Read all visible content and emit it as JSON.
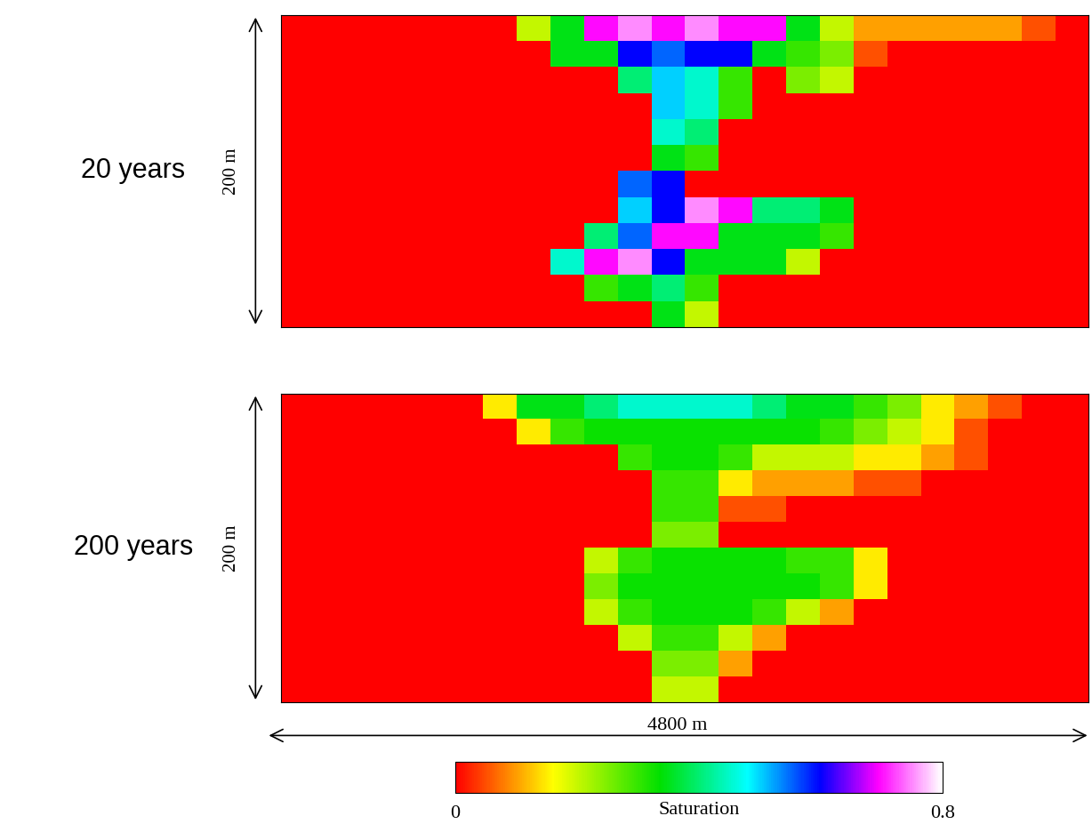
{
  "chart_data": [
    {
      "type": "heatmap",
      "title": "20 years",
      "depth_label": "200 m",
      "xlim": [
        0,
        4800
      ],
      "ylim": [
        200,
        0
      ],
      "tick_labels": false,
      "cells": [
        [
          0,
          0,
          0,
          0,
          0,
          0,
          0,
          0.2,
          0.35,
          0.7,
          0.75,
          0.7,
          0.75,
          0.7,
          0.7,
          0.35,
          0.2,
          0.1,
          0.1,
          0.1,
          0.1,
          0.1,
          0.05,
          0
        ],
        [
          0,
          0,
          0,
          0,
          0,
          0,
          0,
          0,
          0.35,
          0.35,
          0.6,
          0.55,
          0.6,
          0.6,
          0.35,
          0.3,
          0.25,
          0.05,
          0,
          0,
          0,
          0,
          0,
          0
        ],
        [
          0,
          0,
          0,
          0,
          0,
          0,
          0,
          0,
          0,
          0,
          0.4,
          0.5,
          0.45,
          0.3,
          0,
          0.25,
          0.2,
          0,
          0,
          0,
          0,
          0,
          0,
          0
        ],
        [
          0,
          0,
          0,
          0,
          0,
          0,
          0,
          0,
          0,
          0,
          0,
          0.5,
          0.45,
          0.3,
          0,
          0,
          0,
          0,
          0,
          0,
          0,
          0,
          0,
          0
        ],
        [
          0,
          0,
          0,
          0,
          0,
          0,
          0,
          0,
          0,
          0,
          0,
          0.45,
          0.4,
          0,
          0,
          0,
          0,
          0,
          0,
          0,
          0,
          0,
          0,
          0
        ],
        [
          0,
          0,
          0,
          0,
          0,
          0,
          0,
          0,
          0,
          0,
          0,
          0.35,
          0.3,
          0,
          0,
          0,
          0,
          0,
          0,
          0,
          0,
          0,
          0,
          0
        ],
        [
          0,
          0,
          0,
          0,
          0,
          0,
          0,
          0,
          0,
          0,
          0.55,
          0.6,
          0,
          0,
          0,
          0,
          0,
          0,
          0,
          0,
          0,
          0,
          0,
          0
        ],
        [
          0,
          0,
          0,
          0,
          0,
          0,
          0,
          0,
          0,
          0,
          0.5,
          0.6,
          0.75,
          0.7,
          0.4,
          0.4,
          0.35,
          0,
          0,
          0,
          0,
          0,
          0,
          0
        ],
        [
          0,
          0,
          0,
          0,
          0,
          0,
          0,
          0,
          0,
          0.4,
          0.55,
          0.7,
          0.7,
          0.35,
          0.35,
          0.35,
          0.3,
          0,
          0,
          0,
          0,
          0,
          0,
          0
        ],
        [
          0,
          0,
          0,
          0,
          0,
          0,
          0,
          0,
          0.45,
          0.7,
          0.75,
          0.6,
          0.35,
          0.35,
          0.35,
          0.2,
          0,
          0,
          0,
          0,
          0,
          0,
          0,
          0
        ],
        [
          0,
          0,
          0,
          0,
          0,
          0,
          0,
          0,
          0,
          0.3,
          0.35,
          0.4,
          0.3,
          0,
          0,
          0,
          0,
          0,
          0,
          0,
          0,
          0,
          0,
          0
        ],
        [
          0,
          0,
          0,
          0,
          0,
          0,
          0,
          0,
          0,
          0,
          0,
          0.35,
          0.2,
          0,
          0,
          0,
          0,
          0,
          0,
          0,
          0,
          0,
          0,
          0
        ]
      ]
    },
    {
      "type": "heatmap",
      "title": "200 years",
      "depth_label": "200 m",
      "xlim": [
        0,
        4800
      ],
      "ylim": [
        200,
        0
      ],
      "tick_labels": false,
      "cells": [
        [
          0,
          0,
          0,
          0,
          0,
          0,
          0.15,
          0.35,
          0.35,
          0.4,
          0.45,
          0.45,
          0.45,
          0.45,
          0.4,
          0.35,
          0.35,
          0.3,
          0.25,
          0.15,
          0.1,
          0.05,
          0,
          0
        ],
        [
          0,
          0,
          0,
          0,
          0,
          0,
          0,
          0.15,
          0.3,
          0.33,
          0.33,
          0.33,
          0.33,
          0.33,
          0.33,
          0.33,
          0.3,
          0.25,
          0.2,
          0.15,
          0.05,
          0,
          0,
          0
        ],
        [
          0,
          0,
          0,
          0,
          0,
          0,
          0,
          0,
          0,
          0,
          0.3,
          0.33,
          0.33,
          0.3,
          0.2,
          0.2,
          0.2,
          0.15,
          0.15,
          0.1,
          0.05,
          0,
          0,
          0
        ],
        [
          0,
          0,
          0,
          0,
          0,
          0,
          0,
          0,
          0,
          0,
          0,
          0.3,
          0.3,
          0.15,
          0.1,
          0.1,
          0.1,
          0.05,
          0.05,
          0,
          0,
          0,
          0,
          0
        ],
        [
          0,
          0,
          0,
          0,
          0,
          0,
          0,
          0,
          0,
          0,
          0,
          0.3,
          0.3,
          0.05,
          0.05,
          0,
          0,
          0,
          0,
          0,
          0,
          0,
          0,
          0
        ],
        [
          0,
          0,
          0,
          0,
          0,
          0,
          0,
          0,
          0,
          0,
          0,
          0.25,
          0.25,
          0,
          0,
          0,
          0,
          0,
          0,
          0,
          0,
          0,
          0,
          0
        ],
        [
          0,
          0,
          0,
          0,
          0,
          0,
          0,
          0,
          0,
          0.2,
          0.3,
          0.33,
          0.33,
          0.33,
          0.33,
          0.3,
          0.3,
          0.15,
          0,
          0,
          0,
          0,
          0,
          0
        ],
        [
          0,
          0,
          0,
          0,
          0,
          0,
          0,
          0,
          0,
          0.25,
          0.33,
          0.33,
          0.33,
          0.33,
          0.33,
          0.33,
          0.3,
          0.15,
          0,
          0,
          0,
          0,
          0,
          0
        ],
        [
          0,
          0,
          0,
          0,
          0,
          0,
          0,
          0,
          0,
          0.2,
          0.3,
          0.33,
          0.33,
          0.33,
          0.3,
          0.2,
          0.1,
          0,
          0,
          0,
          0,
          0,
          0,
          0
        ],
        [
          0,
          0,
          0,
          0,
          0,
          0,
          0,
          0,
          0,
          0,
          0.2,
          0.3,
          0.3,
          0.2,
          0.1,
          0,
          0,
          0,
          0,
          0,
          0,
          0,
          0,
          0
        ],
        [
          0,
          0,
          0,
          0,
          0,
          0,
          0,
          0,
          0,
          0,
          0,
          0.25,
          0.25,
          0.1,
          0,
          0,
          0,
          0,
          0,
          0,
          0,
          0,
          0,
          0
        ],
        [
          0,
          0,
          0,
          0,
          0,
          0,
          0,
          0,
          0,
          0,
          0,
          0.2,
          0.2,
          0,
          0,
          0,
          0,
          0,
          0,
          0,
          0,
          0,
          0,
          0
        ]
      ]
    }
  ],
  "colorbar": {
    "label": "Saturation",
    "range": [
      0,
      0.8
    ],
    "ticks": [
      0,
      0.8
    ]
  },
  "width_label": "4800 m"
}
